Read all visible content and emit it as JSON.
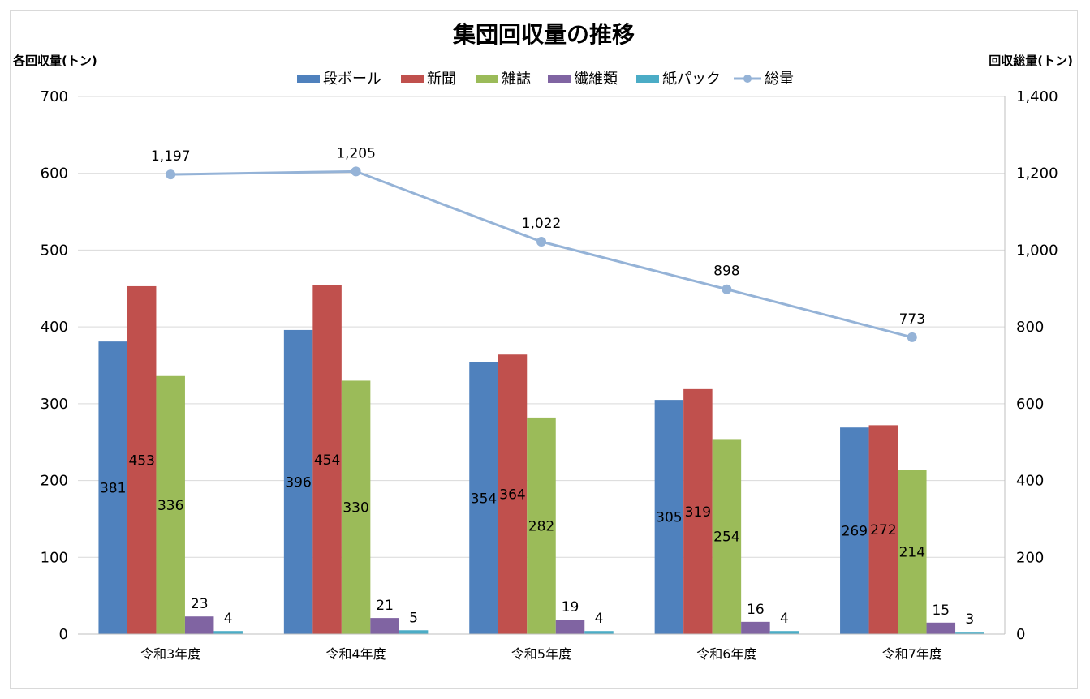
{
  "chart_data": {
    "type": "bar",
    "title": "集団回収量の推移",
    "ylabel_left": "各回収量(トン)",
    "ylabel_right": "回収総量(トン)",
    "categories": [
      "令和3年度",
      "令和4年度",
      "令和5年度",
      "令和6年度",
      "令和7年度"
    ],
    "ylim_left": [
      0,
      700
    ],
    "yticks_left": [
      "0",
      "100",
      "200",
      "300",
      "400",
      "500",
      "600",
      "700"
    ],
    "ylim_right": [
      0,
      1400
    ],
    "yticks_right": [
      "0",
      "200",
      "400",
      "600",
      "800",
      "1,000",
      "1,200",
      "1,400"
    ],
    "grid": true,
    "legend_position": "top",
    "series": [
      {
        "name": "段ボール",
        "type": "bar",
        "axis": "left",
        "color": "#4F81BD",
        "values": [
          381,
          396,
          354,
          305,
          269
        ],
        "labels": [
          "381",
          "396",
          "354",
          "305",
          "269"
        ]
      },
      {
        "name": "新聞",
        "type": "bar",
        "axis": "left",
        "color": "#C0504D",
        "values": [
          453,
          454,
          364,
          319,
          272
        ],
        "labels": [
          "453",
          "454",
          "364",
          "319",
          "272"
        ]
      },
      {
        "name": "雑誌",
        "type": "bar",
        "axis": "left",
        "color": "#9BBB59",
        "values": [
          336,
          330,
          282,
          254,
          214
        ],
        "labels": [
          "336",
          "330",
          "282",
          "254",
          "214"
        ]
      },
      {
        "name": "繊維類",
        "type": "bar",
        "axis": "left",
        "color": "#8064A2",
        "values": [
          23,
          21,
          19,
          16,
          15
        ],
        "labels": [
          "23",
          "21",
          "19",
          "16",
          "15"
        ]
      },
      {
        "name": "紙パック",
        "type": "bar",
        "axis": "left",
        "color": "#4BACC6",
        "values": [
          4,
          5,
          4,
          4,
          3
        ],
        "labels": [
          "4",
          "5",
          "4",
          "4",
          "3"
        ]
      },
      {
        "name": "総量",
        "type": "line",
        "axis": "right",
        "color": "#95B3D7",
        "values": [
          1197,
          1205,
          1022,
          898,
          773
        ],
        "labels": [
          "1,197",
          "1,205",
          "1,022",
          "898",
          "773"
        ]
      }
    ]
  }
}
